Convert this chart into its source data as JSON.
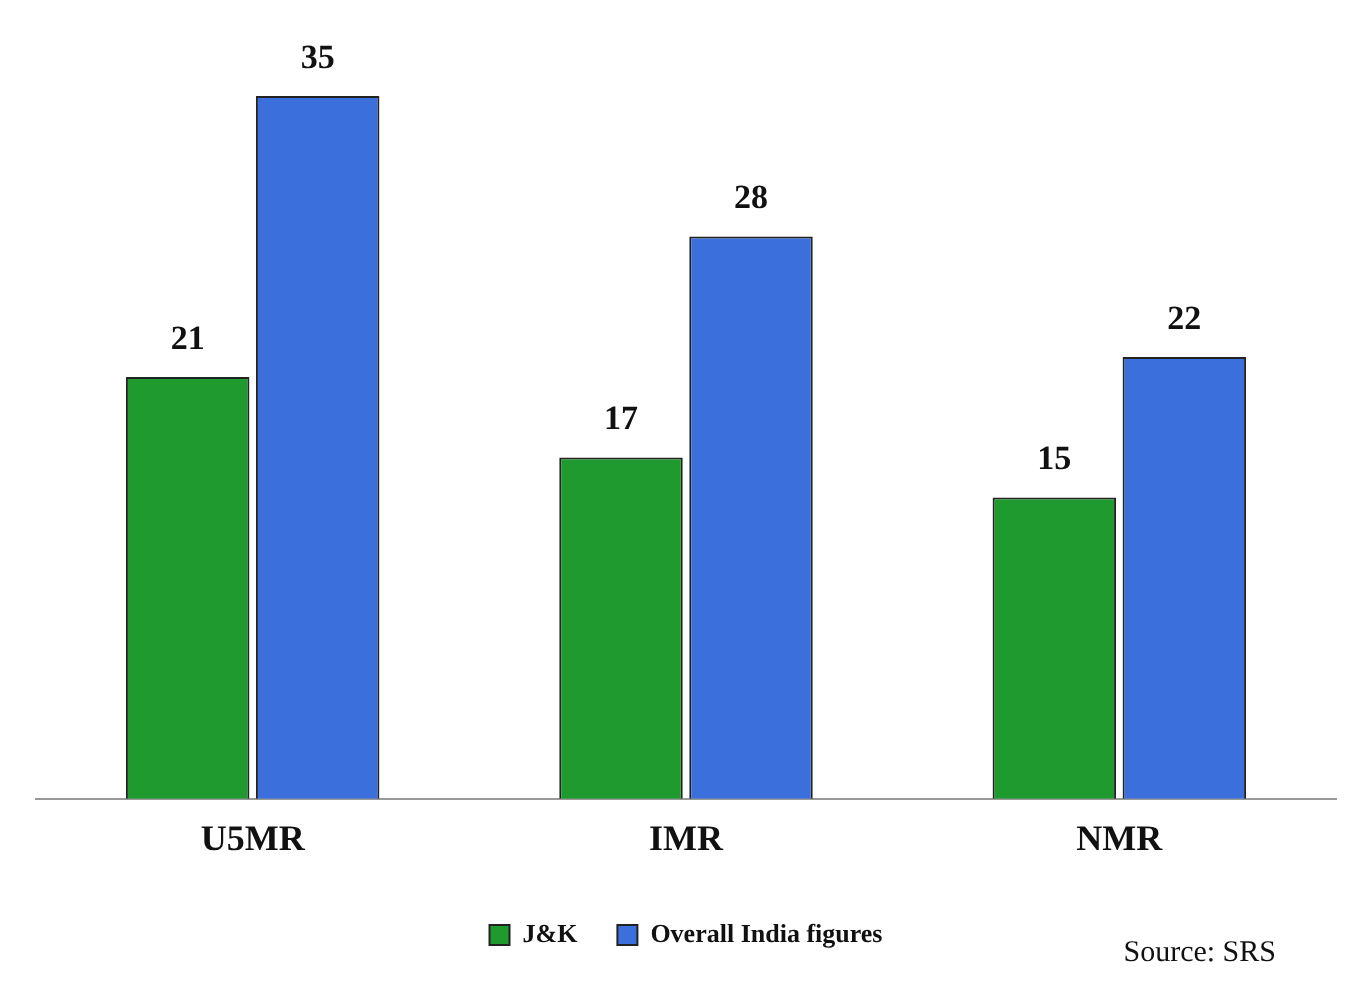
{
  "chart_data": {
    "type": "bar",
    "categories": [
      "U5MR",
      "IMR",
      "NMR"
    ],
    "series": [
      {
        "name": "J&K",
        "color": "#1e9a2e",
        "values": [
          21,
          17,
          15
        ]
      },
      {
        "name": "Overall India figures",
        "color": "#3b6fdc",
        "values": [
          35,
          28,
          22
        ]
      }
    ],
    "data_labels": true,
    "legend": "bottom",
    "grid": false,
    "annotations": [
      "Source: SRS"
    ]
  }
}
